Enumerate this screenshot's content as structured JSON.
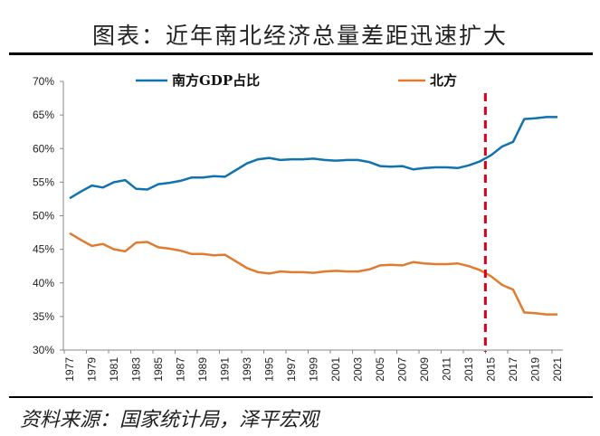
{
  "title": "图表：近年南北经济总量差距迅速扩大",
  "source": "资料来源：国家统计局，泽平宏观",
  "chart_data": {
    "type": "line",
    "title": "图表：近年南北经济总量差距迅速扩大",
    "xlabel": "",
    "ylabel": "",
    "ylim": [
      30,
      70
    ],
    "yticks": [
      "30%",
      "35%",
      "40%",
      "45%",
      "50%",
      "55%",
      "60%",
      "65%",
      "70%"
    ],
    "grid": false,
    "legend": "top",
    "x": [
      1977,
      1978,
      1979,
      1980,
      1981,
      1982,
      1983,
      1984,
      1985,
      1986,
      1987,
      1988,
      1989,
      1990,
      1991,
      1992,
      1993,
      1994,
      1995,
      1996,
      1997,
      1998,
      1999,
      2000,
      2001,
      2002,
      2003,
      2004,
      2005,
      2006,
      2007,
      2008,
      2009,
      2010,
      2011,
      2012,
      2013,
      2014,
      2015,
      2016,
      2017,
      2018,
      2019,
      2020,
      2021
    ],
    "xtick_labels": [
      "1977",
      "1979",
      "1981",
      "1983",
      "1985",
      "1987",
      "1989",
      "1991",
      "1993",
      "1995",
      "1997",
      "1999",
      "2001",
      "2003",
      "2005",
      "2007",
      "2009",
      "2011",
      "2013",
      "2015",
      "2017",
      "2019",
      "2021"
    ],
    "series": [
      {
        "name": "南方GDP占比",
        "color": "#1172B0",
        "values": [
          52.6,
          53.6,
          54.5,
          54.2,
          55.0,
          55.3,
          54.0,
          53.9,
          54.7,
          54.9,
          55.2,
          55.7,
          55.7,
          55.9,
          55.8,
          56.8,
          57.8,
          58.4,
          58.6,
          58.3,
          58.4,
          58.4,
          58.5,
          58.3,
          58.2,
          58.3,
          58.3,
          58.0,
          57.4,
          57.3,
          57.4,
          56.9,
          57.1,
          57.2,
          57.2,
          57.1,
          57.5,
          58.1,
          59.0,
          60.3,
          61.0,
          64.4,
          64.5,
          64.7,
          64.7
        ]
      },
      {
        "name": "北方",
        "color": "#E07B30",
        "values": [
          47.4,
          46.4,
          45.5,
          45.8,
          45.0,
          44.7,
          46.0,
          46.1,
          45.3,
          45.1,
          44.8,
          44.3,
          44.3,
          44.1,
          44.2,
          43.2,
          42.2,
          41.6,
          41.4,
          41.7,
          41.6,
          41.6,
          41.5,
          41.7,
          41.8,
          41.7,
          41.7,
          42.0,
          42.6,
          42.7,
          42.6,
          43.1,
          42.9,
          42.8,
          42.8,
          42.9,
          42.5,
          41.9,
          41.0,
          39.7,
          39.0,
          35.6,
          35.5,
          35.3,
          35.3
        ]
      }
    ],
    "annotations": [
      {
        "type": "vertical-dashed-line",
        "x": 2014.5,
        "color": "#D9001B"
      }
    ]
  }
}
